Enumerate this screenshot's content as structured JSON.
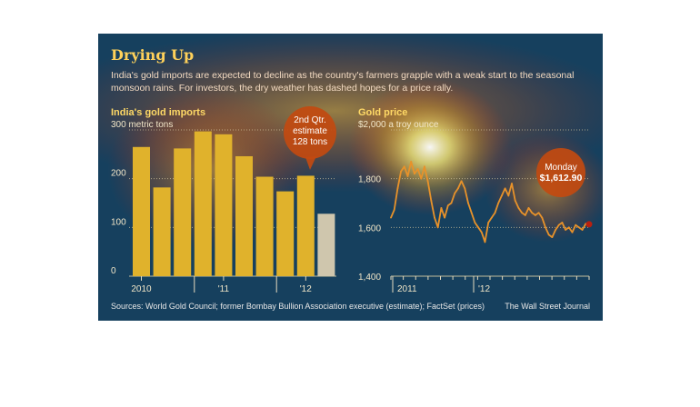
{
  "header": {
    "title": "Drying Up",
    "subtitle": "India's gold imports are expected to decline as the country's farmers grapple with a weak start to the seasonal monsoon rains. For investors, the dry weather has dashed hopes for a price rally."
  },
  "footer": {
    "sources": "Sources: World Gold Council; former Bombay Bullion Association executive (estimate); FactSet (prices)",
    "credit": "The Wall Street Journal"
  },
  "colors": {
    "background": "#16405e",
    "bars": "#e0b22c",
    "estimate_bar": "#cfc6ad",
    "line": "#e8922a",
    "callout": "#c24a10"
  },
  "chart_data": [
    {
      "type": "bar",
      "title": "India's gold imports",
      "unit_label": "300 metric tons",
      "values": [
        265,
        182,
        262,
        297,
        291,
        246,
        204,
        174,
        206,
        128
      ],
      "estimate_index": 9,
      "x_tick_labels": [
        "2010",
        "'11",
        "'12"
      ],
      "y_ticks": [
        0,
        100,
        200,
        300
      ],
      "y_tick_labels": [
        "0",
        "100",
        "200",
        "300 metric tons"
      ],
      "ylim": [
        0,
        300
      ],
      "annotation": {
        "lines": [
          "2nd Qtr.",
          "estimate",
          "128 tons"
        ]
      }
    },
    {
      "type": "line",
      "title": "Gold price",
      "unit_label": "$2,000 a troy ounce",
      "y_ticks": [
        1400,
        1600,
        1800,
        2000
      ],
      "y_tick_labels": [
        "1,400",
        "1,600",
        "1,800",
        "$2,000 a troy ounce"
      ],
      "ylim": [
        1400,
        2000
      ],
      "x_tick_labels": [
        "2011",
        "'12"
      ],
      "series": [
        {
          "values": [
            1640,
            1672,
            1760,
            1830,
            1850,
            1810,
            1870,
            1820,
            1840,
            1800,
            1850,
            1790,
            1710,
            1640,
            1600,
            1680,
            1640,
            1690,
            1700,
            1740,
            1760,
            1790,
            1760,
            1700,
            1660,
            1620,
            1600,
            1580,
            1540,
            1620,
            1640,
            1660,
            1700,
            1730,
            1760,
            1730,
            1780,
            1710,
            1680,
            1660,
            1650,
            1680,
            1660,
            1650,
            1660,
            1640,
            1600,
            1570,
            1560,
            1590,
            1610,
            1620,
            1590,
            1600,
            1580,
            1610,
            1600,
            1590,
            1615,
            1612.9
          ]
        }
      ],
      "annotation": {
        "lines": [
          "Monday",
          "$1,612.90"
        ]
      }
    }
  ]
}
